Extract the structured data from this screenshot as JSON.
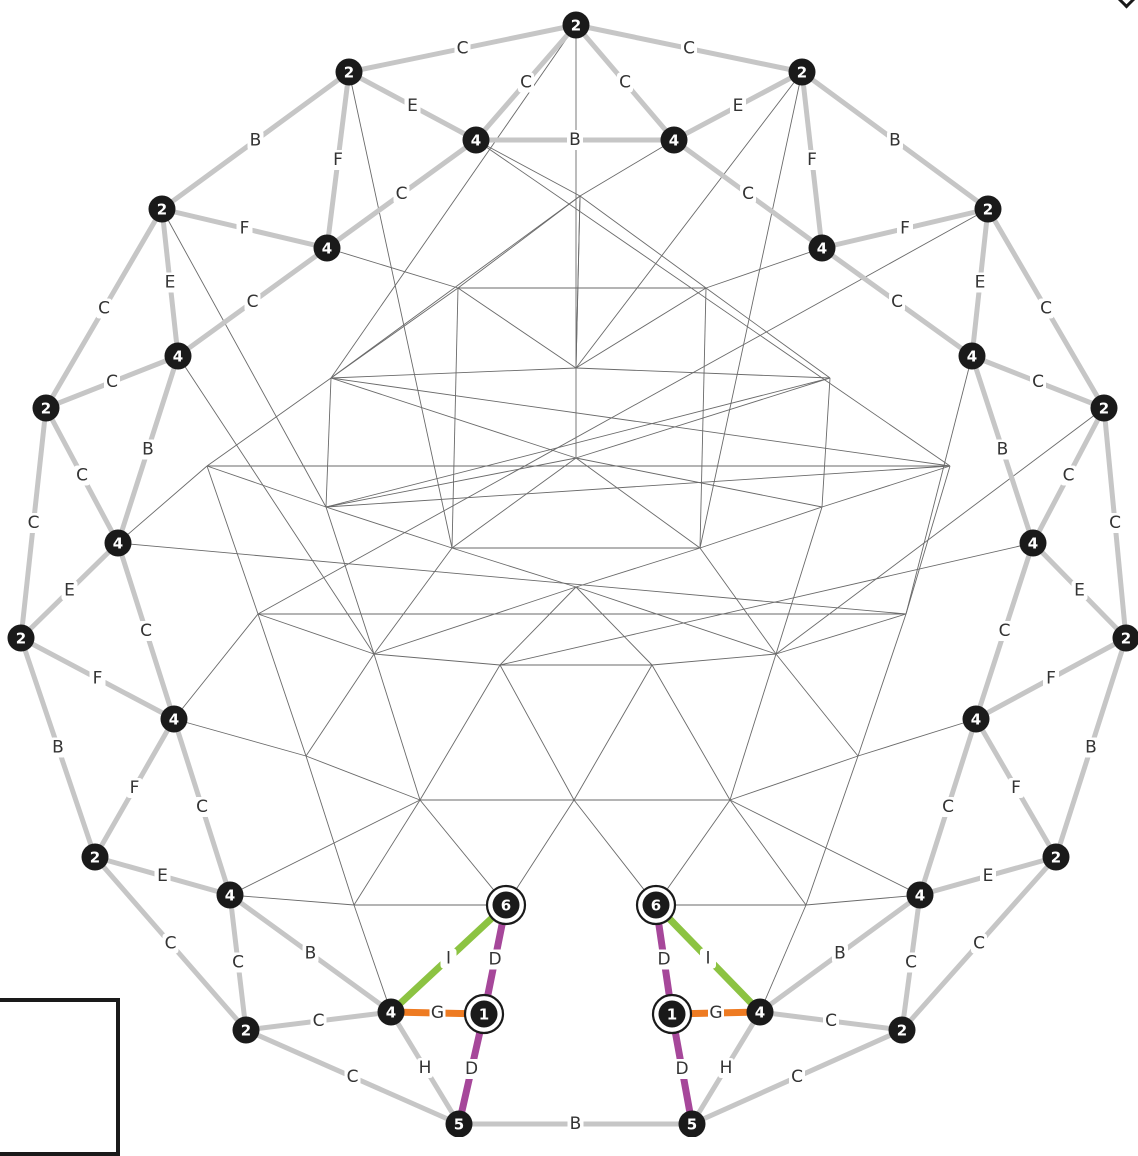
{
  "nodes": [
    {
      "label": "2"
    },
    {
      "label": "2"
    },
    {
      "label": "2"
    },
    {
      "label": "4"
    },
    {
      "label": "4"
    },
    {
      "label": "2"
    },
    {
      "label": "2"
    },
    {
      "label": "4"
    },
    {
      "label": "4"
    },
    {
      "label": "4"
    },
    {
      "label": "4"
    },
    {
      "label": "2"
    },
    {
      "label": "2"
    },
    {
      "label": "4"
    },
    {
      "label": "4"
    },
    {
      "label": "2"
    },
    {
      "label": "2"
    },
    {
      "label": "4"
    },
    {
      "label": "4"
    },
    {
      "label": "2"
    },
    {
      "label": "2"
    },
    {
      "label": "4"
    },
    {
      "label": "4"
    },
    {
      "label": "6"
    },
    {
      "label": "6"
    },
    {
      "label": "4"
    },
    {
      "label": "4"
    },
    {
      "label": "2"
    },
    {
      "label": "2"
    },
    {
      "label": "1"
    },
    {
      "label": "1"
    },
    {
      "label": "5"
    },
    {
      "label": "5"
    }
  ],
  "edges": [
    {
      "from": 0,
      "to": 1,
      "label": "C"
    },
    {
      "from": 0,
      "to": 2,
      "label": "C"
    },
    {
      "from": 0,
      "to": 3,
      "label": "C"
    },
    {
      "from": 0,
      "to": 4,
      "label": "C"
    },
    {
      "from": 3,
      "to": 4,
      "label": "B"
    },
    {
      "from": 1,
      "to": 3,
      "label": "E"
    },
    {
      "from": 2,
      "to": 4,
      "label": "E"
    },
    {
      "from": 1,
      "to": 5,
      "label": "B"
    },
    {
      "from": 2,
      "to": 6,
      "label": "B"
    },
    {
      "from": 1,
      "to": 7,
      "label": "F"
    },
    {
      "from": 2,
      "to": 8,
      "label": "F"
    },
    {
      "from": 3,
      "to": 7,
      "label": "C"
    },
    {
      "from": 4,
      "to": 8,
      "label": "C"
    },
    {
      "from": 5,
      "to": 7,
      "label": "F"
    },
    {
      "from": 6,
      "to": 8,
      "label": "F"
    },
    {
      "from": 5,
      "to": 9,
      "label": "E"
    },
    {
      "from": 6,
      "to": 10,
      "label": "E"
    },
    {
      "from": 7,
      "to": 9,
      "label": "C"
    },
    {
      "from": 8,
      "to": 10,
      "label": "C"
    },
    {
      "from": 5,
      "to": 11,
      "label": "C"
    },
    {
      "from": 6,
      "to": 12,
      "label": "C"
    },
    {
      "from": 9,
      "to": 11,
      "label": "C"
    },
    {
      "from": 10,
      "to": 12,
      "label": "C"
    },
    {
      "from": 9,
      "to": 13,
      "label": "B"
    },
    {
      "from": 10,
      "to": 14,
      "label": "B"
    },
    {
      "from": 11,
      "to": 13,
      "label": "C"
    },
    {
      "from": 12,
      "to": 14,
      "label": "C"
    },
    {
      "from": 11,
      "to": 15,
      "label": "C"
    },
    {
      "from": 12,
      "to": 16,
      "label": "C"
    },
    {
      "from": 13,
      "to": 15,
      "label": "E"
    },
    {
      "from": 14,
      "to": 16,
      "label": "E"
    },
    {
      "from": 13,
      "to": 17,
      "label": "C"
    },
    {
      "from": 14,
      "to": 18,
      "label": "C"
    },
    {
      "from": 15,
      "to": 17,
      "label": "F"
    },
    {
      "from": 16,
      "to": 18,
      "label": "F"
    },
    {
      "from": 15,
      "to": 19,
      "label": "B"
    },
    {
      "from": 16,
      "to": 20,
      "label": "B"
    },
    {
      "from": 17,
      "to": 19,
      "label": "F"
    },
    {
      "from": 18,
      "to": 20,
      "label": "F"
    },
    {
      "from": 17,
      "to": 21,
      "label": "C"
    },
    {
      "from": 18,
      "to": 22,
      "label": "C"
    },
    {
      "from": 19,
      "to": 21,
      "label": "E"
    },
    {
      "from": 20,
      "to": 22,
      "label": "E"
    },
    {
      "from": 19,
      "to": 27,
      "label": "C"
    },
    {
      "from": 20,
      "to": 28,
      "label": "C"
    },
    {
      "from": 21,
      "to": 27,
      "label": "C"
    },
    {
      "from": 22,
      "to": 28,
      "label": "C"
    },
    {
      "from": 21,
      "to": 25,
      "label": "B"
    },
    {
      "from": 22,
      "to": 26,
      "label": "B"
    },
    {
      "from": 27,
      "to": 25,
      "label": "C"
    },
    {
      "from": 28,
      "to": 26,
      "label": "C"
    },
    {
      "from": 27,
      "to": 31,
      "label": "C"
    },
    {
      "from": 28,
      "to": 32,
      "label": "C"
    },
    {
      "from": 25,
      "to": 31,
      "label": "H"
    },
    {
      "from": 26,
      "to": 32,
      "label": "H"
    },
    {
      "from": 31,
      "to": 32,
      "label": "B"
    },
    {
      "from": 23,
      "to": 25,
      "label": "I",
      "kind": "I"
    },
    {
      "from": 24,
      "to": 26,
      "label": "I",
      "kind": "I"
    },
    {
      "from": 25,
      "to": 29,
      "label": "G",
      "kind": "G"
    },
    {
      "from": 26,
      "to": 30,
      "label": "G",
      "kind": "G"
    },
    {
      "from": 23,
      "to": 29,
      "label": "D",
      "kind": "D"
    },
    {
      "from": 24,
      "to": 30,
      "label": "D",
      "kind": "D"
    },
    {
      "from": 29,
      "to": 31,
      "label": "D",
      "kind": "D"
    },
    {
      "from": 30,
      "to": 32,
      "label": "D",
      "kind": "D"
    }
  ],
  "colors": {
    "default_strut": "#c6c6c6",
    "strut_D": "#a6479a",
    "strut_G": "#ee7b22",
    "strut_I": "#8cc342",
    "node": "#1a1a1a",
    "inner_mesh": "#6a6a6a"
  }
}
